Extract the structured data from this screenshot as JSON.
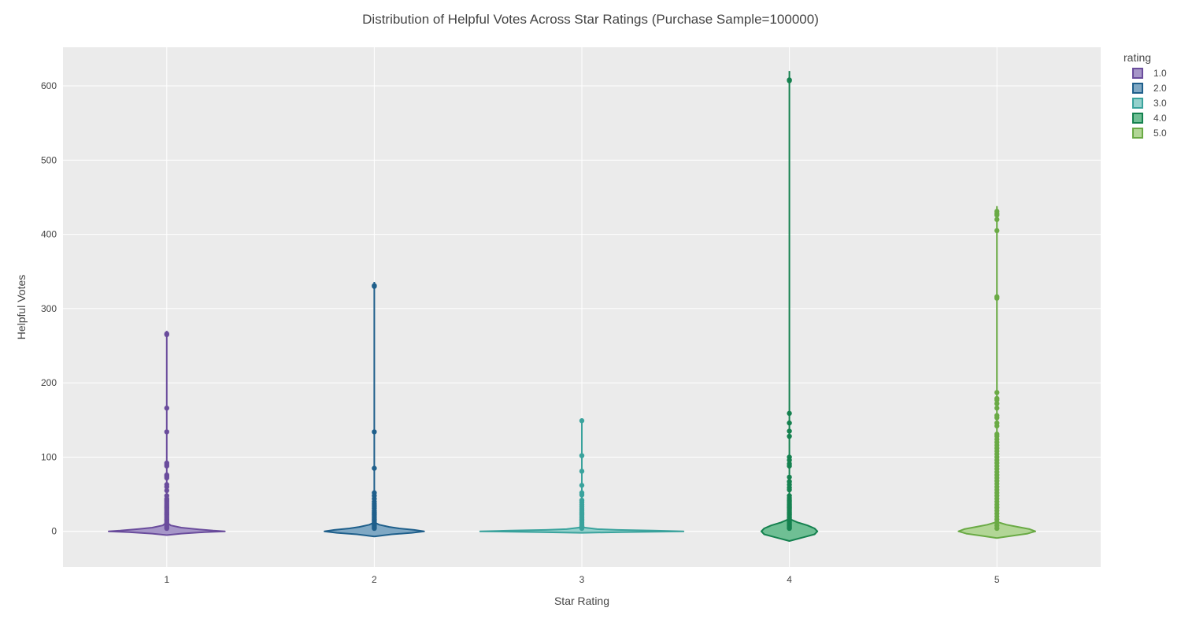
{
  "chart_data": {
    "type": "violin",
    "title": "Distribution of Helpful Votes Across Star Ratings (Purchase Sample=100000)",
    "xlabel": "Star Rating",
    "ylabel": "Helpful Votes",
    "categories": [
      "1",
      "2",
      "3",
      "4",
      "5"
    ],
    "ylim": [
      -48,
      652
    ],
    "yticks": [
      0,
      100,
      200,
      300,
      400,
      500,
      600
    ],
    "grid": true,
    "legend": {
      "title": "rating",
      "position": "top-right"
    },
    "series": [
      {
        "name": "1.0",
        "x": 1,
        "color": "#6a4c9c",
        "fill": "#a696c8",
        "max": 270,
        "violin_half_width": 0.28,
        "violin_profile": [
          [
            -5,
            0.0
          ],
          [
            -3,
            0.25
          ],
          [
            -1,
            0.65
          ],
          [
            0,
            1.0
          ],
          [
            1,
            0.8
          ],
          [
            3,
            0.5
          ],
          [
            5,
            0.25
          ],
          [
            8,
            0.07
          ],
          [
            12,
            0.0
          ]
        ],
        "outliers": [
          266,
          265,
          166,
          134,
          92,
          90,
          88,
          76,
          74,
          72,
          63,
          60,
          55,
          48,
          44,
          42,
          40,
          38,
          36,
          34,
          32,
          30,
          28,
          26,
          24,
          22,
          20,
          18,
          16,
          14,
          12,
          10,
          8,
          6,
          4
        ]
      },
      {
        "name": "2.0",
        "x": 2,
        "color": "#1f5f8b",
        "fill": "#7fa8c4",
        "max": 336,
        "violin_half_width": 0.24,
        "violin_profile": [
          [
            -7,
            0.0
          ],
          [
            -4,
            0.35
          ],
          [
            -2,
            0.75
          ],
          [
            0,
            1.0
          ],
          [
            2,
            0.8
          ],
          [
            4,
            0.5
          ],
          [
            6,
            0.3
          ],
          [
            9,
            0.1
          ],
          [
            12,
            0.0
          ]
        ],
        "outliers": [
          331,
          330,
          134,
          85,
          52,
          48,
          44,
          40,
          37,
          34,
          31,
          28,
          26,
          24,
          22,
          20,
          18,
          16,
          14,
          12,
          10,
          8,
          6,
          4
        ]
      },
      {
        "name": "3.0",
        "x": 3,
        "color": "#3aa39d",
        "fill": "#94d1cc",
        "max": 149,
        "violin_half_width": 0.49,
        "violin_profile": [
          [
            -2,
            0.0
          ],
          [
            -1,
            0.4
          ],
          [
            0,
            1.0
          ],
          [
            1,
            0.7
          ],
          [
            2,
            0.35
          ],
          [
            3,
            0.15
          ],
          [
            5,
            0.03
          ],
          [
            7,
            0.0
          ]
        ],
        "outliers": [
          149,
          102,
          81,
          62,
          52,
          49,
          42,
          39,
          36,
          33,
          30,
          28,
          26,
          24,
          22,
          20,
          18,
          16,
          14,
          12,
          10,
          8,
          6,
          4
        ]
      },
      {
        "name": "4.0",
        "x": 4,
        "color": "#15814f",
        "fill": "#6fbf94",
        "max": 620,
        "violin_half_width": 0.135,
        "violin_profile": [
          [
            -13,
            0.0
          ],
          [
            -8,
            0.5
          ],
          [
            -4,
            0.9
          ],
          [
            0,
            1.0
          ],
          [
            4,
            0.9
          ],
          [
            8,
            0.65
          ],
          [
            12,
            0.3
          ],
          [
            16,
            0.05
          ],
          [
            18,
            0.0
          ]
        ],
        "outliers": [
          608,
          607,
          159,
          146,
          135,
          128,
          100,
          96,
          91,
          88,
          73,
          67,
          63,
          59,
          56,
          48,
          45,
          42,
          40,
          38,
          36,
          34,
          32,
          30,
          28,
          26,
          24,
          22,
          20,
          18,
          16,
          14,
          12,
          10,
          8,
          6,
          4
        ]
      },
      {
        "name": "5.0",
        "x": 5,
        "color": "#6aaa45",
        "fill": "#b2d696",
        "max": 438,
        "violin_half_width": 0.185,
        "violin_profile": [
          [
            -9,
            0.0
          ],
          [
            -6,
            0.4
          ],
          [
            -3,
            0.8
          ],
          [
            0,
            1.0
          ],
          [
            3,
            0.85
          ],
          [
            6,
            0.55
          ],
          [
            9,
            0.25
          ],
          [
            12,
            0.05
          ],
          [
            14,
            0.0
          ]
        ],
        "outliers": [
          431,
          428,
          426,
          420,
          405,
          316,
          314,
          187,
          179,
          177,
          172,
          166,
          156,
          153,
          146,
          142,
          131,
          128,
          124,
          120,
          116,
          112,
          108,
          104,
          100,
          96,
          92,
          88,
          84,
          80,
          76,
          72,
          68,
          64,
          60,
          56,
          52,
          48,
          44,
          40,
          36,
          32,
          28,
          24,
          20,
          16,
          12,
          8,
          4
        ]
      }
    ]
  }
}
